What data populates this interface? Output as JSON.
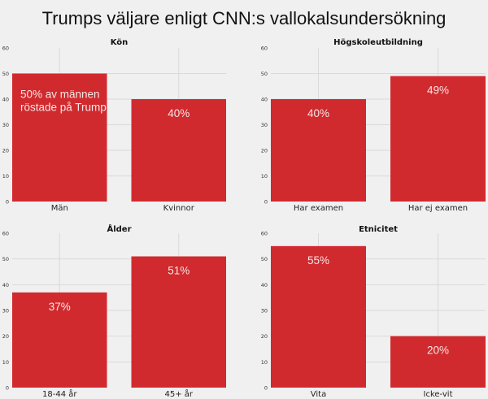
{
  "chart_data": {
    "type": "bar",
    "title": "Trumps väljare enligt CNN:s vallokalsundersökning",
    "bar_color": "#d12a2e",
    "background_color": "#f0f0f0",
    "grid": true,
    "panels": [
      {
        "title": "Kön",
        "categories": [
          "Män",
          "Kvinnor"
        ],
        "values": [
          50,
          40
        ],
        "data_labels": [
          [
            "50% av männen",
            "röstade på Trump"
          ],
          [
            "40%"
          ]
        ],
        "ylim": [
          0,
          60
        ],
        "yticks": [
          0,
          10,
          20,
          30,
          40,
          50,
          60
        ]
      },
      {
        "title": "Högskoleutbildning",
        "categories": [
          "Har examen",
          "Har ej examen"
        ],
        "values": [
          40,
          49
        ],
        "data_labels": [
          [
            "40%"
          ],
          [
            "49%"
          ]
        ],
        "ylim": [
          0,
          60
        ],
        "yticks": [
          0,
          10,
          20,
          30,
          40,
          50,
          60
        ]
      },
      {
        "title": "Ålder",
        "categories": [
          "18-44 år",
          "45+ år"
        ],
        "values": [
          37,
          51
        ],
        "data_labels": [
          [
            "37%"
          ],
          [
            "51%"
          ]
        ],
        "ylim": [
          0,
          60
        ],
        "yticks": [
          0,
          10,
          20,
          30,
          40,
          50,
          60
        ]
      },
      {
        "title": "Etnicitet",
        "categories": [
          "Vita",
          "Icke-vit"
        ],
        "values": [
          55,
          20
        ],
        "data_labels": [
          [
            "55%"
          ],
          [
            "20%"
          ]
        ],
        "ylim": [
          0,
          60
        ],
        "yticks": [
          0,
          10,
          20,
          30,
          40,
          50,
          60
        ]
      }
    ]
  }
}
